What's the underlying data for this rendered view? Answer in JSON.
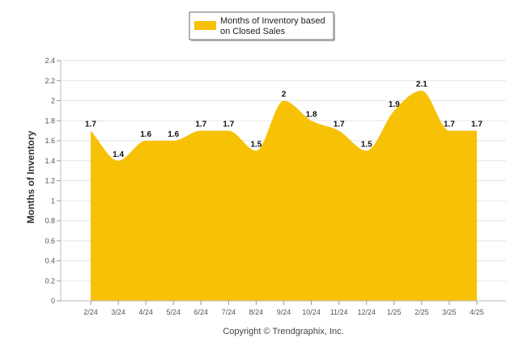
{
  "chart_data": {
    "type": "area",
    "categories": [
      "2/24",
      "3/24",
      "4/24",
      "5/24",
      "6/24",
      "7/24",
      "8/24",
      "9/24",
      "10/24",
      "11/24",
      "12/24",
      "1/25",
      "2/25",
      "3/25",
      "4/25"
    ],
    "series": [
      {
        "name": "Months of Inventory based on Closed Sales",
        "values": [
          1.7,
          1.4,
          1.6,
          1.6,
          1.7,
          1.7,
          1.5,
          2,
          1.8,
          1.7,
          1.5,
          1.9,
          2.1,
          1.7,
          1.7
        ],
        "labels": [
          "1.7",
          "1.4",
          "1.6",
          "1.6",
          "1.7",
          "1.7",
          "1.5",
          "2",
          "1.8",
          "1.7",
          "1.5",
          "1.9",
          "2.1",
          "1.7",
          "1.7"
        ],
        "color": "#F7C106"
      }
    ],
    "legend": {
      "line1": "Months of Inventory based",
      "line2": "on Closed Sales",
      "position": "top-center"
    },
    "ylabel": "Months of Inventory",
    "xlabel": "",
    "ylim": [
      0,
      2.4
    ],
    "yticks": [
      "0",
      "0.2",
      "0.4",
      "0.6",
      "0.8",
      "1",
      "1.2",
      "1.4",
      "1.6",
      "1.8",
      "2",
      "2.2",
      "2.4"
    ],
    "grid": true,
    "copyright": "Copyright © Trendgraphix, Inc."
  }
}
